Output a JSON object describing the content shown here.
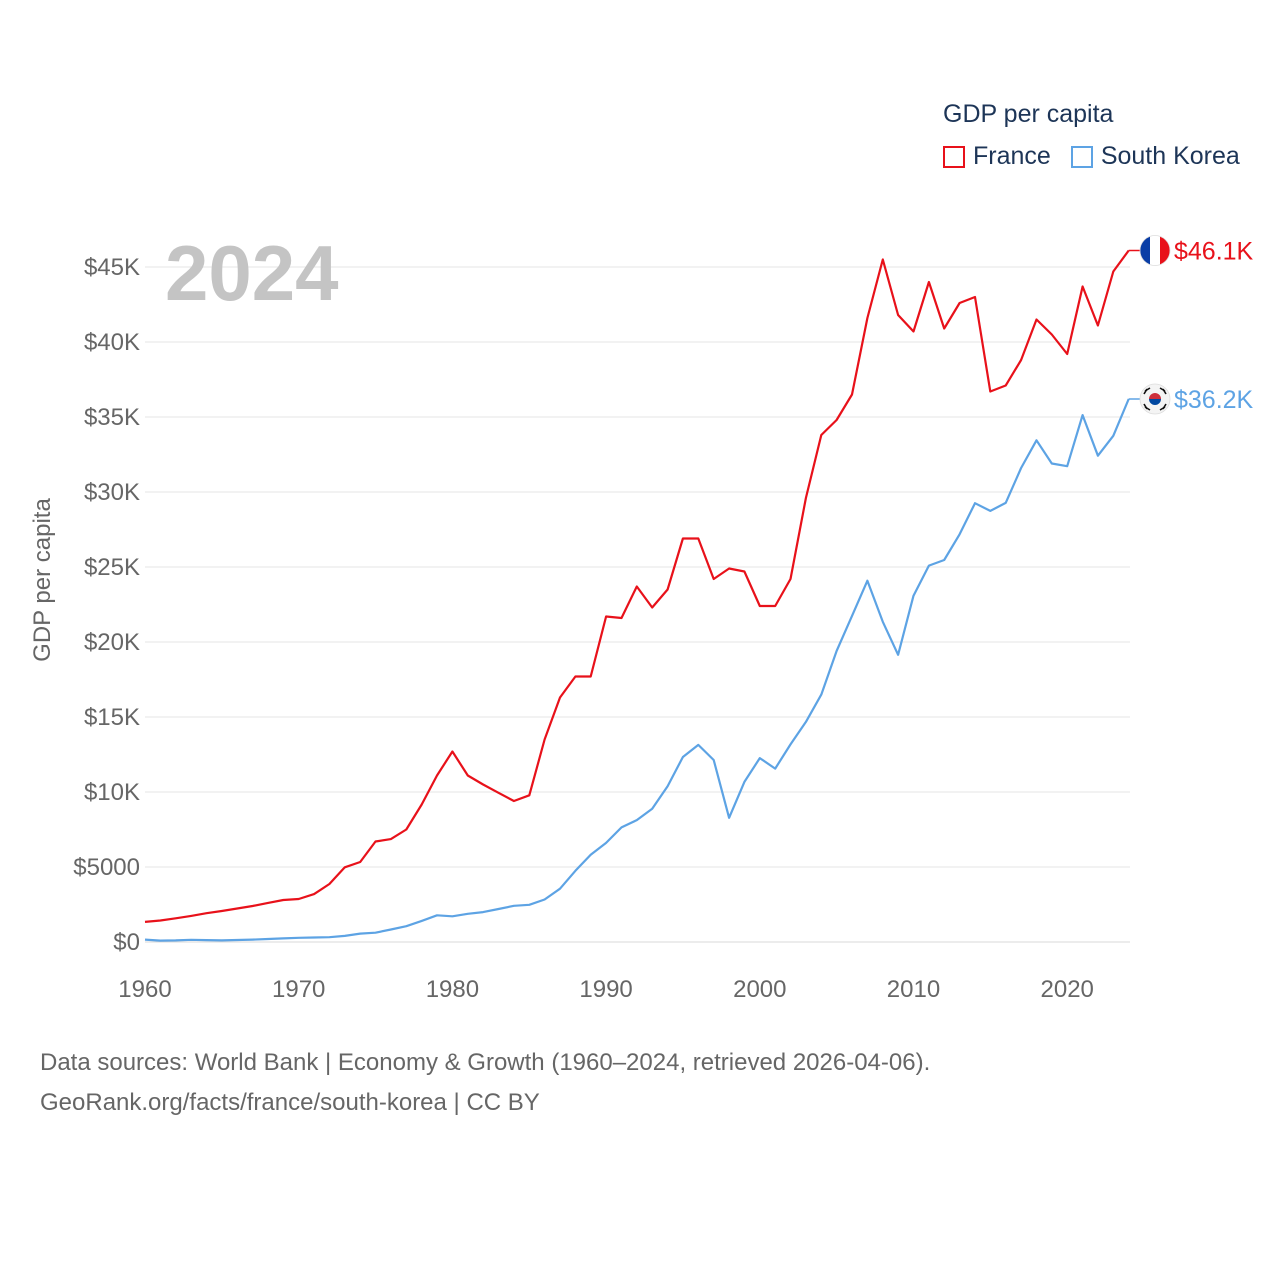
{
  "legend": {
    "title": "GDP per capita",
    "items": [
      {
        "label": "France",
        "color": "#e8111a"
      },
      {
        "label": "South Korea",
        "color": "#5da3e4"
      }
    ]
  },
  "source": {
    "line1": "Data sources: World Bank | Economy & Growth (1960–2024, retrieved 2026-04-06).",
    "line2": "GeoRank.org/facts/france/south-korea | CC BY"
  },
  "chart_data": {
    "type": "line",
    "title": "",
    "year_overlay": "2024",
    "xlabel": "",
    "ylabel": "GDP per capita",
    "xlim": [
      1960,
      2024
    ],
    "ylim": [
      0,
      46000
    ],
    "x_ticks": [
      1960,
      1970,
      1980,
      1990,
      2000,
      2010,
      2020
    ],
    "y_ticks": [
      {
        "value": 0,
        "label": "$0"
      },
      {
        "value": 5000,
        "label": "$5000"
      },
      {
        "value": 10000,
        "label": "$10K"
      },
      {
        "value": 15000,
        "label": "$15K"
      },
      {
        "value": 20000,
        "label": "$20K"
      },
      {
        "value": 25000,
        "label": "$25K"
      },
      {
        "value": 30000,
        "label": "$30K"
      },
      {
        "value": 35000,
        "label": "$35K"
      },
      {
        "value": 40000,
        "label": "$40K"
      },
      {
        "value": 45000,
        "label": "$45K"
      }
    ],
    "x": [
      1960,
      1961,
      1962,
      1963,
      1964,
      1965,
      1966,
      1967,
      1968,
      1969,
      1970,
      1971,
      1972,
      1973,
      1974,
      1975,
      1976,
      1977,
      1978,
      1979,
      1980,
      1981,
      1982,
      1983,
      1984,
      1985,
      1986,
      1987,
      1988,
      1989,
      1990,
      1991,
      1992,
      1993,
      1994,
      1995,
      1996,
      1997,
      1998,
      1999,
      2000,
      2001,
      2002,
      2003,
      2004,
      2005,
      2006,
      2007,
      2008,
      2009,
      2010,
      2011,
      2012,
      2013,
      2014,
      2015,
      2016,
      2017,
      2018,
      2019,
      2020,
      2021,
      2022,
      2023,
      2024
    ],
    "series": [
      {
        "name": "France",
        "color": "#e8111a",
        "end_label": "$46.1K",
        "flag": "france-flag",
        "values": [
          1340,
          1430,
          1580,
          1740,
          1920,
          2070,
          2230,
          2400,
          2610,
          2800,
          2870,
          3190,
          3870,
          4980,
          5330,
          6700,
          6860,
          7500,
          9170,
          11100,
          12700,
          11100,
          10500,
          9950,
          9400,
          9780,
          13500,
          16300,
          17700,
          17700,
          21700,
          21600,
          23700,
          22300,
          23500,
          26900,
          26900,
          24200,
          24900,
          24700,
          22400,
          22400,
          24200,
          29600,
          33800,
          34800,
          36500,
          41600,
          45500,
          41800,
          40700,
          44000,
          40900,
          42600,
          43000,
          36700,
          37100,
          38800,
          41500,
          40500,
          39200,
          43700,
          41100,
          44700,
          46100
        ]
      },
      {
        "name": "South Korea",
        "color": "#5da3e4",
        "end_label": "$36.2K",
        "flag": "south-korea-flag",
        "values": [
          158,
          94,
          106,
          146,
          124,
          108,
          133,
          161,
          198,
          243,
          279,
          301,
          323,
          406,
          563,
          617,
          830,
          1056,
          1406,
          1783,
          1715,
          1883,
          1993,
          2199,
          2413,
          2483,
          2835,
          3554,
          4749,
          5817,
          6610,
          7637,
          8127,
          8885,
          10385,
          12333,
          13138,
          12132,
          8282,
          10672,
          12257,
          11563,
          13173,
          14673,
          16496,
          19403,
          21743,
          24086,
          21345,
          19144,
          23087,
          25096,
          25467,
          27180,
          29253,
          28737,
          29274,
          31601,
          33447,
          31902,
          31721,
          35126,
          32423,
          33745,
          36200
        ]
      }
    ]
  }
}
